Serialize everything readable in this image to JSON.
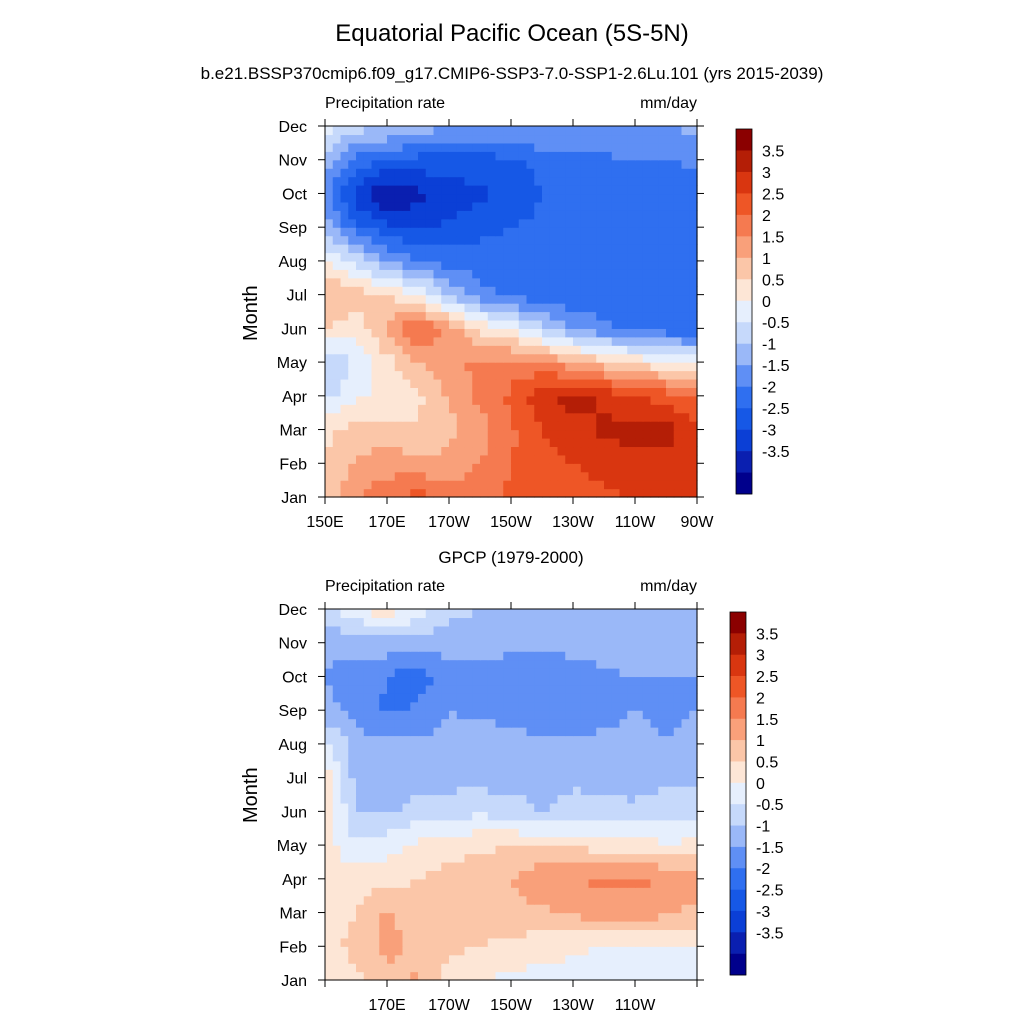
{
  "header": {
    "title": "Equatorial Pacific Ocean (5S-5N)",
    "subtitle": "b.e21.BSSP370cmip6.f09_g17.CMIP6-SSP3-7.0-SSP1-2.6Lu.101 (yrs 2015-2039)"
  },
  "colors": {
    "levels": [
      -3.5,
      -3,
      -2.5,
      -2,
      -1.5,
      -1,
      -0.5,
      0,
      0.5,
      1,
      1.5,
      2,
      2.5,
      3,
      3.5
    ],
    "fills": [
      "#00008c",
      "#0a1fb0",
      "#0b3fd6",
      "#1658e6",
      "#2f6ff0",
      "#5f8ff5",
      "#9ab8f8",
      "#c6d9fb",
      "#e6effd",
      "#fde6d6",
      "#fbc6a8",
      "#f9a07a",
      "#f57a50",
      "#ee5626",
      "#d93610",
      "#b41e06",
      "#8b0000"
    ]
  },
  "chart_data": [
    {
      "type": "heatmap",
      "title": "",
      "left_label": "Precipitation rate",
      "right_label": "mm/day",
      "ylabel": "Month",
      "xlabel": "",
      "x_ticks": [
        "150E",
        "170E",
        "170W",
        "150W",
        "130W",
        "110W",
        "90W"
      ],
      "y_ticks": [
        "Jan",
        "Feb",
        "Mar",
        "Apr",
        "May",
        "Jun",
        "Jul",
        "Aug",
        "Sep",
        "Oct",
        "Nov",
        "Dec"
      ],
      "colorbar_labels": [
        "3.5",
        "3",
        "2.5",
        "2",
        "1.5",
        "1",
        "0.5",
        "0",
        "-0.5",
        "-1",
        "-1.5",
        "-2",
        "-2.5",
        "-3",
        "-3.5"
      ],
      "x_range": [
        "150E",
        "90W"
      ],
      "y_range": [
        "Jan",
        "Dec"
      ],
      "units": "mm/day",
      "values": [
        [
          1.2,
          2.0,
          2.3,
          2.8,
          2.2,
          2.4,
          2.6,
          2.7,
          2.8,
          2.9,
          3.0,
          3.1,
          3.2
        ],
        [
          1.0,
          1.6,
          1.8,
          1.6,
          1.7,
          2.0,
          2.5,
          2.8,
          3.0,
          3.2,
          3.3,
          3.3,
          3.3
        ],
        [
          0.9,
          1.2,
          1.2,
          1.0,
          1.3,
          1.8,
          2.4,
          3.0,
          3.3,
          3.6,
          3.7,
          3.7,
          3.2
        ],
        [
          -0.2,
          0.4,
          0.6,
          0.9,
          1.6,
          2.1,
          2.6,
          3.4,
          3.7,
          3.4,
          3.0,
          2.8,
          2.5
        ],
        [
          -0.6,
          0.1,
          0.8,
          1.5,
          1.9,
          2.1,
          2.2,
          2.1,
          1.6,
          1.2,
          0.9,
          0.6,
          0.3
        ],
        [
          1.0,
          0.7,
          1.6,
          2.6,
          1.8,
          0.9,
          0.4,
          -0.4,
          -1.0,
          -1.4,
          -1.6,
          -1.8,
          -1.9
        ],
        [
          1.6,
          1.3,
          1.0,
          0.5,
          -0.5,
          -1.3,
          -1.6,
          -1.8,
          -1.9,
          -1.9,
          -1.9,
          -1.9,
          -1.9
        ],
        [
          0.5,
          -0.2,
          -1.0,
          -1.4,
          -1.7,
          -1.8,
          -1.9,
          -2.0,
          -2.0,
          -2.0,
          -2.0,
          -1.6,
          -1.7
        ],
        [
          -0.8,
          -1.8,
          -2.4,
          -2.6,
          -2.4,
          -2.1,
          -2.0,
          -1.9,
          -1.9,
          -1.8,
          -1.6,
          -1.6,
          -1.8
        ],
        [
          -1.3,
          -2.8,
          -3.6,
          -3.1,
          -2.8,
          -2.6,
          -2.4,
          -2.0,
          -1.8,
          -1.8,
          -1.8,
          -1.9,
          -1.8
        ],
        [
          -0.7,
          -1.7,
          -2.0,
          -2.2,
          -2.2,
          -2.2,
          -2.1,
          -1.8,
          -1.6,
          -1.6,
          -1.5,
          -1.5,
          -1.4
        ],
        [
          0.4,
          -0.3,
          -0.4,
          -0.6,
          -1.0,
          -1.0,
          -0.9,
          -0.9,
          -1.0,
          -1.0,
          -1.0,
          -1.0,
          -0.9
        ]
      ]
    },
    {
      "type": "heatmap",
      "title": "GPCP (1979-2000)",
      "left_label": "Precipitation rate",
      "right_label": "mm/day",
      "ylabel": "Month",
      "xlabel": "",
      "x_ticks": [
        "170E",
        "170W",
        "150W",
        "130W",
        "110W"
      ],
      "y_ticks": [
        "Jan",
        "Feb",
        "Mar",
        "Apr",
        "May",
        "Jun",
        "Jul",
        "Aug",
        "Sep",
        "Oct",
        "Nov",
        "Dec"
      ],
      "colorbar_labels": [
        "3.5",
        "3",
        "2.5",
        "2",
        "1.5",
        "1",
        "0.5",
        "0",
        "-0.5",
        "-1",
        "-1.5",
        "-2",
        "-2.5",
        "-3",
        "-3.5"
      ],
      "x_range": [
        "150E",
        "90W"
      ],
      "y_range": [
        "Jan",
        "Dec"
      ],
      "units": "mm/day",
      "values": [
        [
          0.6,
          0.9,
          1.2,
          1.6,
          0.7,
          0.5,
          0.4,
          0.3,
          0.3,
          0.2,
          0.3,
          0.3,
          0.4
        ],
        [
          0.7,
          1.2,
          1.7,
          1.3,
          1.1,
          1.0,
          0.8,
          0.7,
          0.6,
          0.5,
          0.5,
          0.5,
          0.5
        ],
        [
          0.8,
          1.0,
          1.6,
          1.2,
          1.2,
          1.2,
          1.4,
          1.4,
          1.6,
          1.7,
          1.8,
          1.6,
          1.3
        ],
        [
          0.7,
          0.8,
          0.8,
          1.0,
          1.2,
          1.3,
          1.5,
          1.9,
          2.0,
          2.1,
          2.1,
          2.0,
          1.8
        ],
        [
          0.7,
          0.1,
          0.3,
          0.6,
          0.8,
          0.9,
          1.0,
          1.0,
          0.9,
          0.8,
          0.7,
          0.6,
          0.6
        ],
        [
          0.9,
          -0.5,
          -0.6,
          -0.3,
          -0.2,
          -0.1,
          -0.3,
          -0.5,
          -0.3,
          -0.3,
          -0.4,
          -0.3,
          -0.1
        ],
        [
          0.8,
          -0.7,
          -0.8,
          -0.7,
          -0.7,
          -0.7,
          -0.7,
          -0.7,
          -0.6,
          -0.7,
          -0.7,
          -0.6,
          -0.7
        ],
        [
          0.2,
          -0.8,
          -0.9,
          -0.9,
          -0.8,
          -0.7,
          -0.8,
          -0.9,
          -0.9,
          -0.9,
          -0.9,
          -1.0,
          -0.8
        ],
        [
          -0.9,
          -1.1,
          -1.6,
          -1.4,
          -1.0,
          -1.1,
          -1.2,
          -1.3,
          -1.3,
          -1.1,
          -1.0,
          -1.1,
          -1.0
        ],
        [
          -1.0,
          -1.3,
          -1.5,
          -1.8,
          -1.2,
          -1.1,
          -1.2,
          -1.4,
          -1.3,
          -1.1,
          -1.0,
          -1.0,
          -1.0
        ],
        [
          -0.9,
          -0.8,
          -0.7,
          -0.8,
          -0.8,
          -0.9,
          -0.9,
          -0.9,
          -0.8,
          -0.7,
          -0.7,
          -0.7,
          -0.7
        ],
        [
          -0.2,
          0.4,
          0.9,
          0.3,
          -0.3,
          -0.5,
          -0.5,
          -0.5,
          -0.5,
          -0.5,
          -0.5,
          -0.5,
          -0.5
        ]
      ]
    }
  ]
}
